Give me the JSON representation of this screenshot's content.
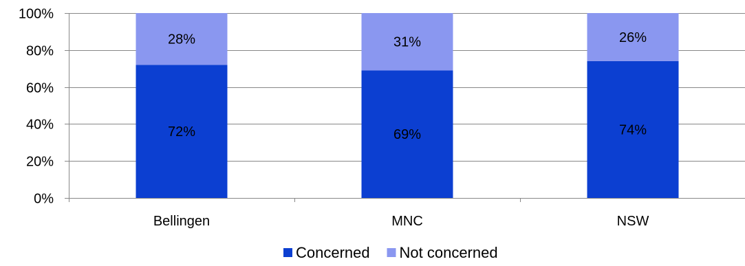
{
  "chart_data": {
    "type": "bar",
    "stacked": true,
    "categories": [
      "Bellingen",
      "MNC",
      "NSW"
    ],
    "series": [
      {
        "name": "Concerned",
        "values": [
          72,
          69,
          74
        ],
        "labels": [
          "72%",
          "69%",
          "74%"
        ],
        "color": "#0c3fd1"
      },
      {
        "name": "Not concerned",
        "values": [
          28,
          31,
          26
        ],
        "labels": [
          "28%",
          "31%",
          "26%"
        ],
        "color": "#8a97f0"
      }
    ],
    "yticks": [
      "0%",
      "20%",
      "40%",
      "60%",
      "80%",
      "100%"
    ],
    "ylim": [
      0,
      100
    ],
    "grid": true,
    "legend": "bottom"
  }
}
